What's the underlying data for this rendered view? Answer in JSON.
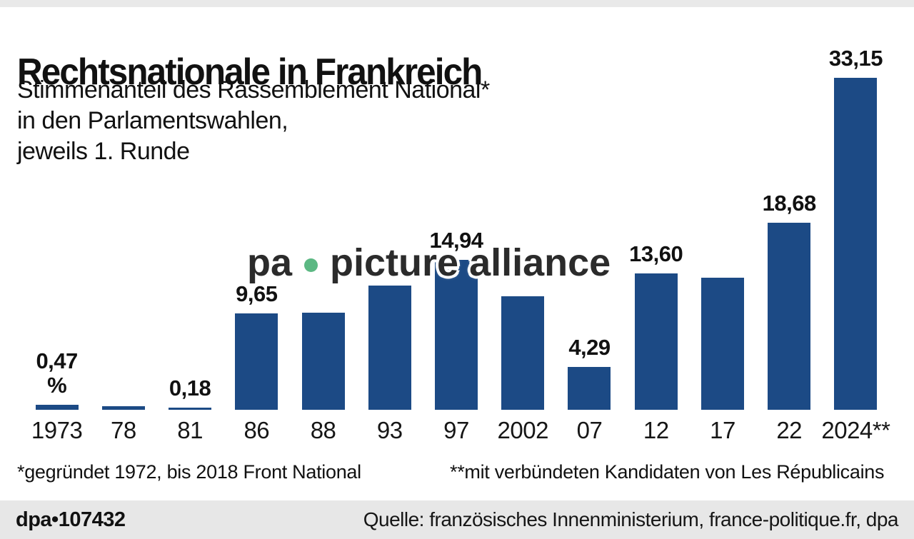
{
  "page": {
    "top_strip_color": "#e9e9e9"
  },
  "header": {
    "title": "Rechtsnationale in Frankreich",
    "subtitle_lines": [
      "Stimmenanteil des Rassemblement National*",
      "in den Parlamentswahlen,",
      "jeweils 1. Runde"
    ]
  },
  "chart_data": {
    "type": "bar",
    "title": "Rechtsnationale in Frankreich",
    "subtitle": "Stimmenanteil des Rassemblement National in den Parlamentswahlen, jeweils 1. Runde",
    "unit": "%",
    "categories": [
      "1973",
      "78",
      "81",
      "86",
      "88",
      "93",
      "97",
      "2002",
      "07",
      "12",
      "17",
      "22",
      "2024**"
    ],
    "values": [
      0.47,
      0.33,
      0.18,
      9.65,
      9.66,
      12.42,
      14.94,
      11.3,
      4.29,
      13.6,
      13.2,
      18.68,
      33.15
    ],
    "value_labels": [
      "0,47",
      null,
      "0,18",
      "9,65",
      null,
      null,
      "14,94",
      null,
      "4,29",
      "13,60",
      null,
      "18,68",
      "33,15"
    ],
    "unit_label_on_first_bar": "%",
    "bar_color": "#1c4a85",
    "ylim": [
      0,
      34.2
    ],
    "grid": false,
    "legend": false
  },
  "footnotes": {
    "left": "*gegründet 1972, bis 2018 Front National",
    "right": "**mit verbündeten Kandidaten von Les Républicains"
  },
  "watermark": {
    "part1": "pa",
    "part2": "picture alliance",
    "dot_color": "#5cb883"
  },
  "footer": {
    "credit": "dpa•107432",
    "source": "Quelle: französisches Innenministerium, france-politique.fr, dpa",
    "bg": "#e7e7e7"
  }
}
